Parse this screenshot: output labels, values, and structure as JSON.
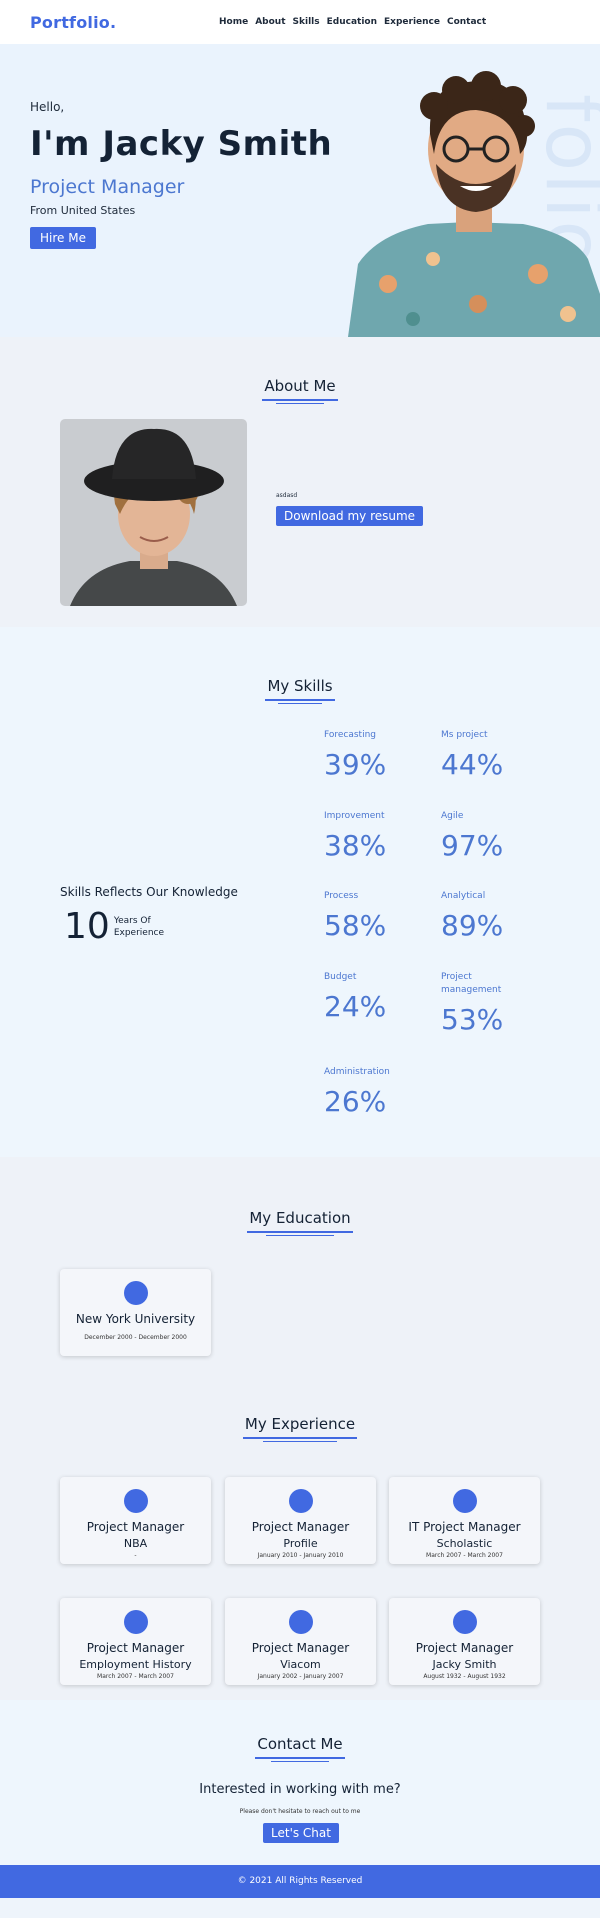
{
  "nav": {
    "logo": "Portfolio.",
    "items": [
      "Home",
      "About",
      "Skills",
      "Education",
      "Experience",
      "Contact"
    ]
  },
  "hero": {
    "greeting": "Hello,",
    "name": "I'm Jacky Smith",
    "role": "Project Manager",
    "location": "From United States",
    "cta": "Hire Me",
    "watermark": "folio"
  },
  "about": {
    "title": "About Me",
    "text": "asdasd",
    "cta": "Download my resume"
  },
  "skills": {
    "title": "My Skills",
    "heading": "Skills Reflects Our Knowledge",
    "years": "10",
    "years_label": "Years Of Experience",
    "items": [
      {
        "name": "Forecasting",
        "value": "39%"
      },
      {
        "name": "Ms project",
        "value": "44%"
      },
      {
        "name": "Improvement",
        "value": "38%"
      },
      {
        "name": "Agile",
        "value": "97%"
      },
      {
        "name": "Process",
        "value": "58%"
      },
      {
        "name": "Analytical",
        "value": "89%"
      },
      {
        "name": "Budget",
        "value": "24%"
      },
      {
        "name": "Project management",
        "value": "53%"
      },
      {
        "name": "Administration",
        "value": "26%"
      }
    ]
  },
  "education": {
    "title": "My Education",
    "items": [
      {
        "school": "New York University",
        "dates": "December 2000 - December 2000"
      }
    ]
  },
  "experience": {
    "title": "My Experience",
    "items": [
      {
        "role": "Project Manager",
        "company": "NBA",
        "dates": "-"
      },
      {
        "role": "Project Manager",
        "company": "Profile",
        "dates": "January 2010 - January 2010"
      },
      {
        "role": "IT Project Manager",
        "company": "Scholastic",
        "dates": "March 2007 - March 2007"
      },
      {
        "role": "Project Manager",
        "company": "Employment History",
        "dates": "March 2007 - March 2007"
      },
      {
        "role": "Project Manager",
        "company": "Viacom",
        "dates": "January 2002 - January 2007"
      },
      {
        "role": "Project Manager",
        "company": "Jacky Smith",
        "dates": "August 1932 - August 1932"
      }
    ]
  },
  "contact": {
    "title": "Contact Me",
    "heading": "Interested in working with me?",
    "sub": "Please don't hesitate to reach out to me",
    "cta": "Let's Chat"
  },
  "footer": {
    "text": "© 2021 All Rights Reserved"
  },
  "colors": {
    "accent": "#4169e1",
    "skill": "#4c77d0",
    "dark": "#142235"
  }
}
